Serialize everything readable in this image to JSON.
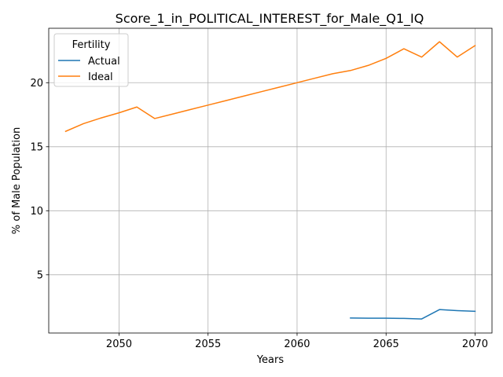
{
  "chart_data": {
    "type": "line",
    "title": "Score_1_in_POLITICAL_INTEREST_for_Male_Q1_IQ",
    "xlabel": "Years",
    "ylabel": "% of Male Population",
    "xlim": [
      2046.05,
      2070.95
    ],
    "ylim": [
      0.45,
      24.25
    ],
    "x_ticks": [
      2050,
      2055,
      2060,
      2065,
      2070
    ],
    "y_ticks": [
      5,
      10,
      15,
      20
    ],
    "grid": true,
    "legend": {
      "title": "Fertility",
      "placement": "top-left"
    },
    "series": [
      {
        "name": "Actual",
        "color": "#1f77b4",
        "x": [
          2063,
          2064,
          2065,
          2066,
          2067,
          2068,
          2069,
          2070
        ],
        "values": [
          1.62,
          1.61,
          1.61,
          1.59,
          1.55,
          2.28,
          2.2,
          2.15
        ]
      },
      {
        "name": "Ideal",
        "color": "#ff7f0e",
        "x": [
          2047,
          2048,
          2049,
          2050,
          2051,
          2052,
          2053,
          2054,
          2055,
          2056,
          2057,
          2058,
          2059,
          2060,
          2061,
          2062,
          2063,
          2064,
          2065,
          2066,
          2067,
          2068,
          2069,
          2070
        ],
        "values": [
          16.2,
          16.8,
          17.25,
          17.65,
          18.1,
          17.2,
          17.55,
          17.9,
          18.25,
          18.6,
          18.95,
          19.3,
          19.65,
          20.0,
          20.35,
          20.7,
          20.95,
          21.35,
          21.9,
          22.65,
          22.0,
          23.2,
          22.0,
          22.9
        ]
      }
    ]
  }
}
